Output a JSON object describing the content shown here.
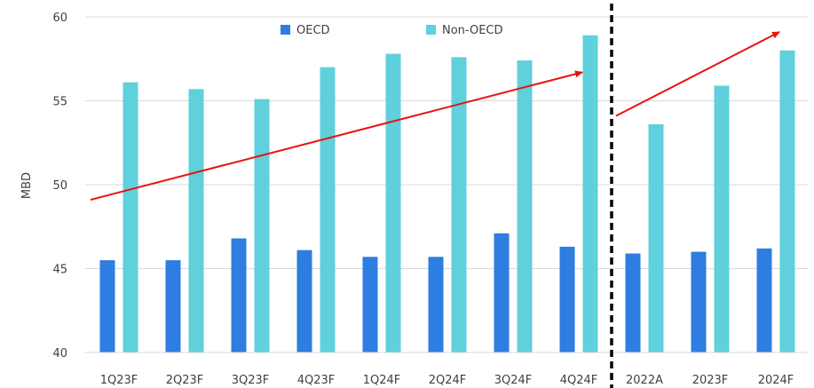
{
  "chart_data": {
    "type": "bar",
    "title": "",
    "xlabel": "",
    "ylabel": "MBD",
    "ylim": [
      40,
      60
    ],
    "yticks": [
      40,
      45,
      50,
      55,
      60
    ],
    "grid": true,
    "legend_position": "top-center",
    "categories": [
      "1Q23F",
      "2Q23F",
      "3Q23F",
      "4Q23F",
      "1Q24F",
      "2Q24F",
      "3Q24F",
      "4Q24F",
      "2022A",
      "2023F",
      "2024F"
    ],
    "series": [
      {
        "name": "OECD",
        "color": "#2e7de1",
        "values": [
          45.5,
          45.5,
          46.8,
          46.1,
          45.7,
          45.7,
          47.1,
          46.3,
          45.9,
          46.0,
          46.2
        ]
      },
      {
        "name": "Non-OECD",
        "color": "#5fd0dc",
        "values": [
          56.1,
          55.7,
          55.1,
          57.0,
          57.8,
          57.6,
          57.4,
          58.9,
          53.6,
          55.9,
          58.0
        ]
      }
    ],
    "divider": {
      "after_category_index": 7,
      "style": "dashed",
      "color": "#000000"
    },
    "trend_arrows": [
      {
        "color": "#e8130e",
        "from": {
          "x": "1Q23F",
          "y": 49.1
        },
        "to": {
          "x": "4Q24F",
          "y": 56.7
        }
      },
      {
        "color": "#e8130e",
        "from": {
          "x": "2022A",
          "y": 54.1
        },
        "to": {
          "x": "2024F",
          "y": 59.1
        }
      }
    ]
  }
}
